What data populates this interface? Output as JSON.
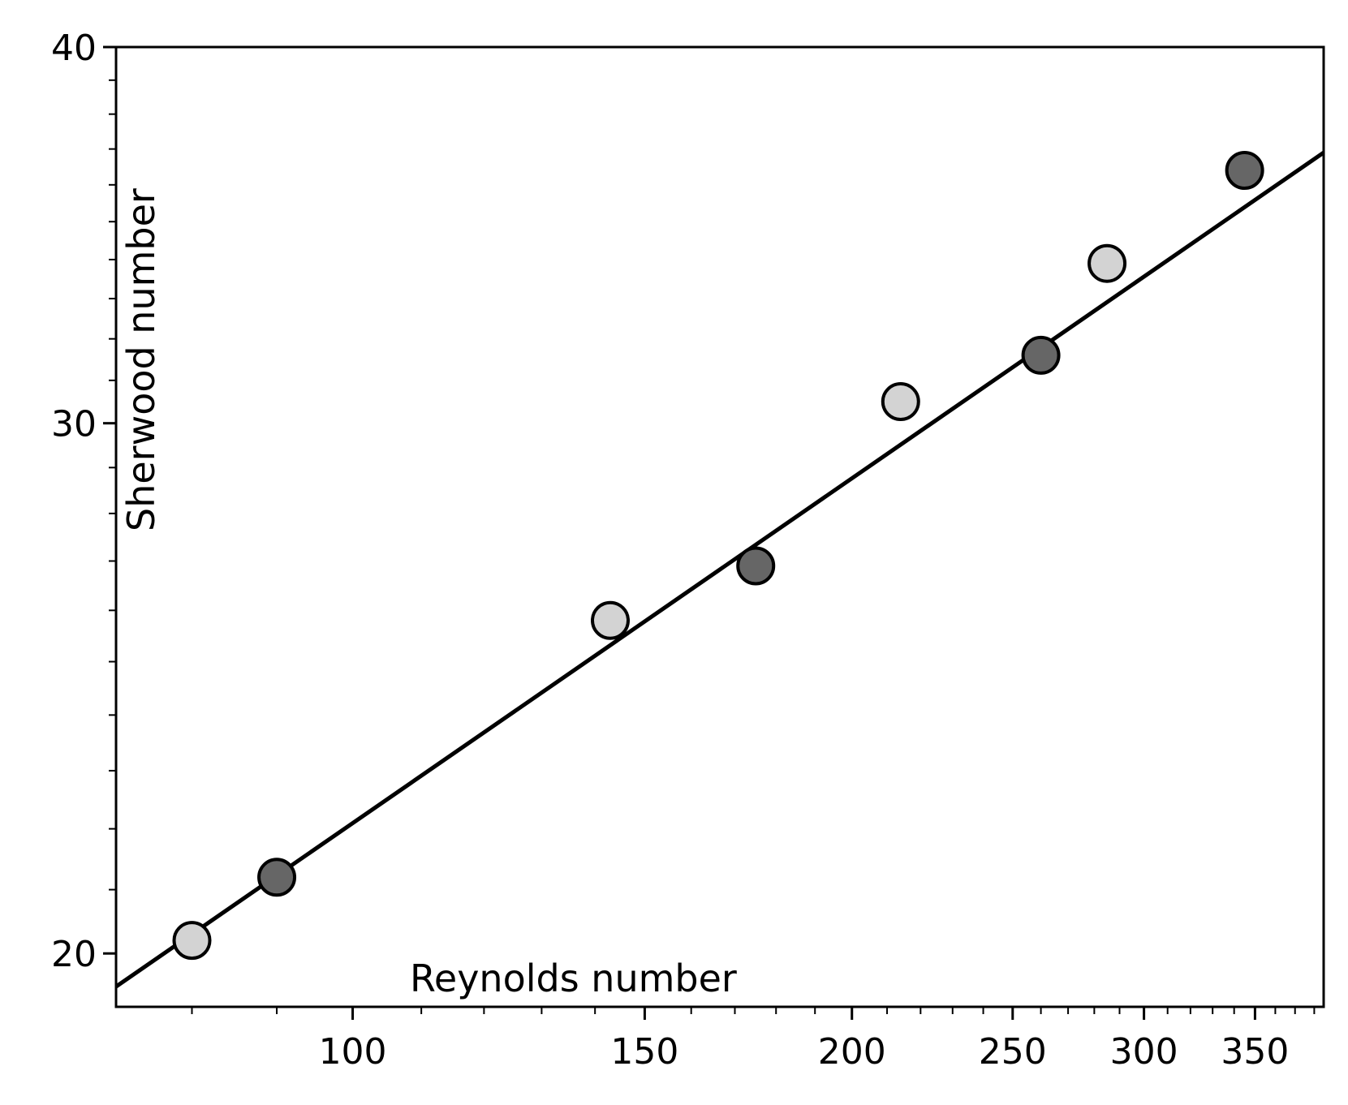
{
  "chart_data": {
    "type": "scatter",
    "title": "",
    "xlabel": "Reynolds number",
    "ylabel": "Sherwood number",
    "xscale": "log",
    "yscale": "log",
    "xlim": [
      72,
      385
    ],
    "ylim": [
      19.2,
      40
    ],
    "x_ticks": [
      100,
      150,
      200,
      250,
      300,
      350
    ],
    "x_tick_labels": [
      "100",
      "150",
      "200",
      "250",
      "300",
      "350"
    ],
    "x_minor_ticks": [
      80,
      90,
      110,
      120,
      130,
      140,
      160,
      170,
      180,
      190,
      210,
      220,
      230,
      240,
      260,
      270,
      280,
      290,
      310,
      320,
      330,
      340,
      360,
      370,
      380
    ],
    "y_ticks": [
      20,
      30,
      40
    ],
    "y_tick_labels": [
      "20",
      "30",
      "40"
    ],
    "y_minor_ticks": [
      21,
      22,
      23,
      24,
      25,
      26,
      27,
      28,
      29,
      31,
      32,
      33,
      34,
      35,
      36,
      37,
      38,
      39
    ],
    "grid": false,
    "legend": false,
    "series": [
      {
        "color": "#d3d3d3",
        "points": [
          {
            "x": 80,
            "y": 20.2
          },
          {
            "x": 143,
            "y": 25.8
          },
          {
            "x": 214,
            "y": 30.5
          },
          {
            "x": 285,
            "y": 33.9
          }
        ]
      },
      {
        "color": "#666666",
        "points": [
          {
            "x": 90,
            "y": 21.2
          },
          {
            "x": 175,
            "y": 26.9
          },
          {
            "x": 260,
            "y": 31.6
          },
          {
            "x": 345,
            "y": 36.4
          }
        ]
      }
    ],
    "fit_line": {
      "color": "#000000",
      "points": [
        {
          "x": 72,
          "y": 19.5
        },
        {
          "x": 385,
          "y": 36.9
        }
      ]
    },
    "marker_edge_color": "#000000"
  }
}
